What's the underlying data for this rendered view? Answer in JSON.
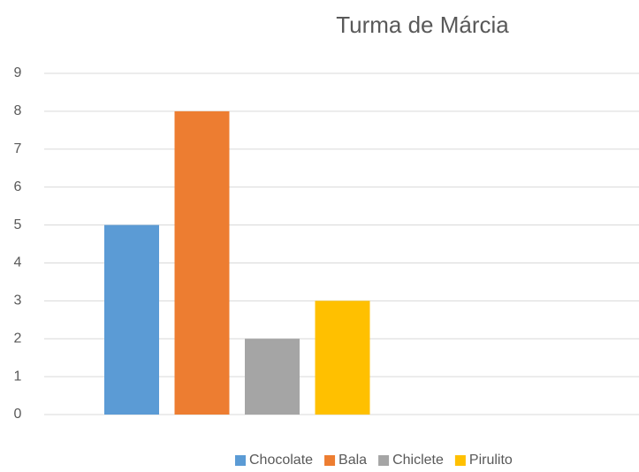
{
  "chart_data": {
    "type": "bar",
    "title": "Turma de Márcia",
    "categories": [
      null
    ],
    "series": [
      {
        "name": "Chocolate",
        "color": "#5b9bd5",
        "values": [
          5
        ]
      },
      {
        "name": "Bala",
        "color": "#ed7d31",
        "values": [
          8
        ]
      },
      {
        "name": "Chiclete",
        "color": "#a5a5a5",
        "values": [
          2
        ]
      },
      {
        "name": "Pirulito",
        "color": "#ffc000",
        "values": [
          3
        ]
      }
    ],
    "ylim": [
      0,
      9
    ],
    "yticks": [
      0,
      1,
      2,
      3,
      4,
      5,
      6,
      7,
      8,
      9
    ],
    "grid": true,
    "legend": "bottom"
  }
}
